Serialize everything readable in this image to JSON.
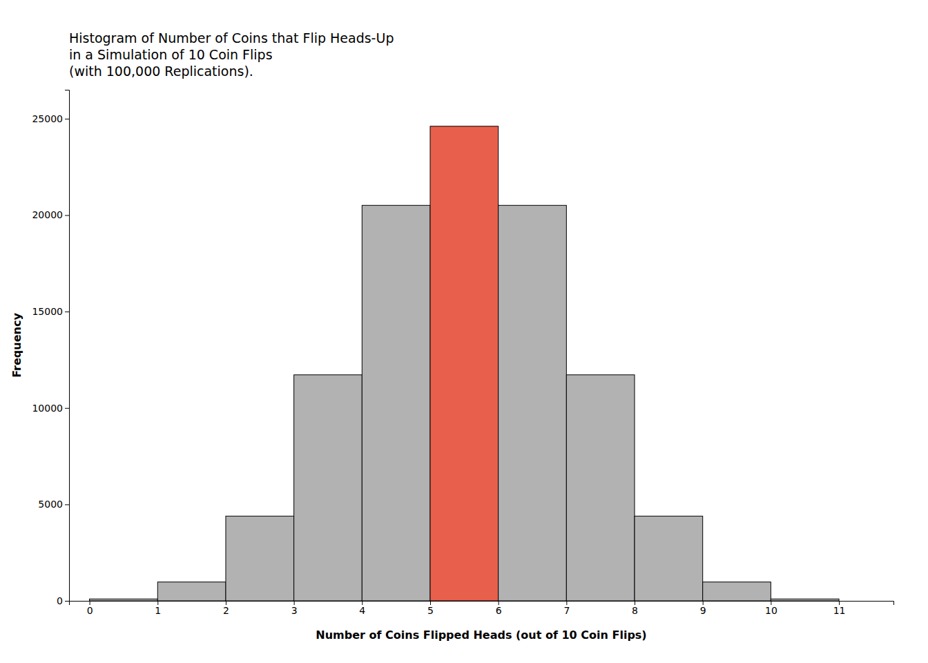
{
  "chart_data": {
    "type": "histogram",
    "title": "Histogram of Number of Coins that Flip Heads-Up\nin a Simulation of 10 Coin Flips\n(with 100,000 Replications).",
    "xlabel": "Number of Coins Flipped Heads (out of 10 Coin Flips)",
    "ylabel": "Frequency",
    "bins": [
      0,
      1,
      2,
      3,
      4,
      5,
      6,
      7,
      8,
      9,
      10,
      11
    ],
    "values": [
      98,
      977,
      4394,
      11719,
      20508,
      24609,
      20508,
      11719,
      4394,
      977,
      98
    ],
    "colors": [
      "#b2b2b2",
      "#b2b2b2",
      "#b2b2b2",
      "#b2b2b2",
      "#b2b2b2",
      "#e8604c",
      "#b2b2b2",
      "#b2b2b2",
      "#b2b2b2",
      "#b2b2b2",
      "#b2b2b2"
    ],
    "xlim": [
      -0.3,
      11.8
    ],
    "xticks": [
      0,
      1,
      2,
      3,
      4,
      5,
      6,
      7,
      8,
      9,
      10,
      11
    ],
    "ylim": [
      0,
      26500
    ],
    "yticks": [
      0,
      5000,
      10000,
      15000,
      20000,
      25000
    ],
    "grid": false
  }
}
